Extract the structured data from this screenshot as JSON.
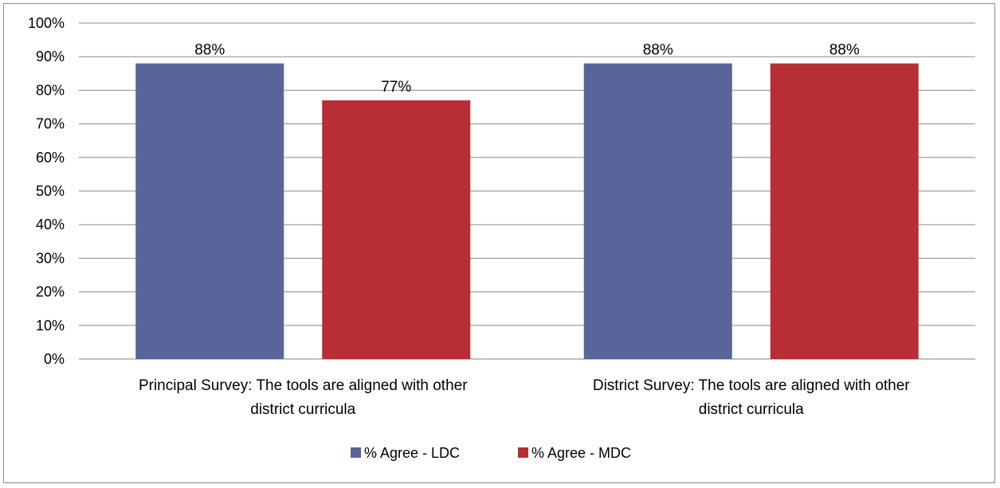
{
  "chart_data": {
    "type": "bar",
    "title": "",
    "xlabel": "",
    "ylabel": "",
    "ylim": [
      0,
      100
    ],
    "y_ticks": [
      "0%",
      "10%",
      "20%",
      "30%",
      "40%",
      "50%",
      "60%",
      "70%",
      "80%",
      "90%",
      "100%"
    ],
    "categories": [
      [
        "Principal Survey: The tools are aligned with other",
        "district curricula"
      ],
      [
        "District Survey: The tools are aligned with other",
        "district curricula"
      ]
    ],
    "series": [
      {
        "name": "% Agree - LDC",
        "color": "#58659a",
        "values": [
          88,
          88
        ],
        "labels": [
          "88%",
          "88%"
        ]
      },
      {
        "name": "% Agree - MDC",
        "color": "#b72e35",
        "values": [
          77,
          88
        ],
        "labels": [
          "77%",
          "88%"
        ]
      }
    ],
    "grid": true,
    "legend_position": "bottom"
  }
}
